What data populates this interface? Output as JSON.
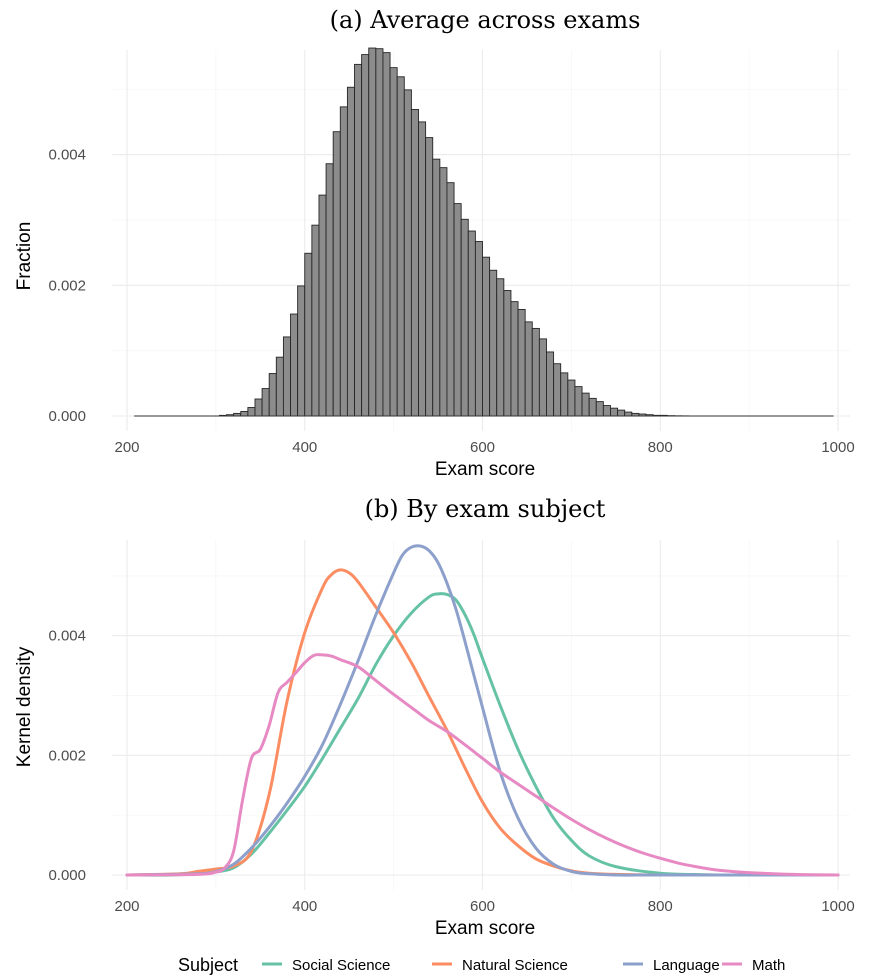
{
  "chart_data": [
    {
      "type": "bar",
      "title": "(a) Average across exams",
      "xlabel": "Exam score",
      "ylabel": "Fraction",
      "xlim": [
        200,
        1000
      ],
      "ylim": [
        0,
        0.0056
      ],
      "x_ticks": [
        "200",
        "400",
        "600",
        "800",
        "1000"
      ],
      "y_ticks": [
        "0.000",
        "0.002",
        "0.004"
      ],
      "grid": true,
      "bin_width": 8,
      "bars": {
        "bin_start": [
          304,
          312,
          320,
          328,
          336,
          344,
          352,
          360,
          368,
          376,
          384,
          392,
          400,
          408,
          416,
          424,
          432,
          440,
          448,
          456,
          464,
          472,
          480,
          488,
          496,
          504,
          512,
          520,
          528,
          536,
          544,
          552,
          560,
          568,
          576,
          584,
          592,
          600,
          608,
          616,
          624,
          632,
          640,
          648,
          656,
          664,
          672,
          680,
          688,
          696,
          704,
          712,
          720,
          728,
          736,
          744,
          752,
          760,
          768,
          776,
          784,
          792,
          800,
          808,
          816,
          824
        ],
        "values": [
          1e-05,
          2e-05,
          4e-05,
          7e-05,
          0.00013,
          0.00026,
          0.00042,
          0.00065,
          0.0009,
          0.00121,
          0.00156,
          0.00199,
          0.00249,
          0.00292,
          0.00338,
          0.00386,
          0.00435,
          0.00473,
          0.00503,
          0.00538,
          0.00553,
          0.00563,
          0.00562,
          0.00556,
          0.00533,
          0.00519,
          0.00499,
          0.00469,
          0.0045,
          0.00426,
          0.00393,
          0.0038,
          0.00357,
          0.00325,
          0.00301,
          0.00283,
          0.00267,
          0.00243,
          0.00223,
          0.0021,
          0.00192,
          0.00175,
          0.00163,
          0.00144,
          0.00134,
          0.00118,
          0.00098,
          0.0008,
          0.00066,
          0.00055,
          0.00045,
          0.00035,
          0.00027,
          0.00022,
          0.00016,
          0.00012,
          9e-05,
          6e-05,
          4e-05,
          3e-05,
          2e-05,
          1e-05,
          1e-05,
          5e-06,
          3e-06,
          2e-06
        ]
      }
    },
    {
      "type": "line",
      "title": "(b) By exam subject",
      "xlabel": "Exam score",
      "ylabel": "Kernel density",
      "xlim": [
        200,
        1000
      ],
      "ylim": [
        0,
        0.0056
      ],
      "x_ticks": [
        "200",
        "400",
        "600",
        "800",
        "1000"
      ],
      "y_ticks": [
        "0.000",
        "0.002",
        "0.004"
      ],
      "grid": true,
      "legend": {
        "title": "Subject",
        "position": "bottom"
      },
      "series": [
        {
          "name": "Social Science",
          "color": "#66c2a5",
          "x": [
            200,
            250,
            280,
            300,
            320,
            340,
            360,
            380,
            400,
            420,
            440,
            460,
            480,
            500,
            520,
            540,
            550,
            560,
            570,
            580,
            590,
            600,
            620,
            640,
            660,
            680,
            700,
            720,
            750,
            800,
            850,
            900,
            1000
          ],
          "y": [
            0,
            0,
            2e-05,
            5e-05,
            0.00012,
            0.00035,
            0.0007,
            0.00108,
            0.00148,
            0.00195,
            0.00245,
            0.00295,
            0.00352,
            0.004,
            0.00438,
            0.00465,
            0.0047,
            0.00469,
            0.0046,
            0.00436,
            0.00403,
            0.00362,
            0.00283,
            0.0021,
            0.00148,
            0.00095,
            0.00058,
            0.00032,
            0.00014,
            3e-05,
            5e-06,
            0,
            0
          ]
        },
        {
          "name": "Natural Science",
          "color": "#fc8d62",
          "x": [
            200,
            260,
            280,
            300,
            320,
            340,
            360,
            380,
            400,
            420,
            430,
            440,
            450,
            460,
            480,
            500,
            520,
            540,
            560,
            580,
            600,
            620,
            640,
            660,
            680,
            700,
            720,
            750,
            800,
            850,
            1000
          ],
          "y": [
            0,
            2e-05,
            6e-05,
            0.0001,
            0.00015,
            0.0004,
            0.00135,
            0.0029,
            0.00405,
            0.0048,
            0.00502,
            0.0051,
            0.00505,
            0.0049,
            0.00448,
            0.00405,
            0.00355,
            0.00298,
            0.00242,
            0.0018,
            0.00122,
            0.00078,
            0.00049,
            0.00027,
            0.00015,
            7e-05,
            3e-05,
            1e-05,
            0,
            0,
            0
          ]
        },
        {
          "name": "Language",
          "color": "#8da0cb",
          "x": [
            200,
            280,
            300,
            320,
            340,
            360,
            380,
            400,
            420,
            440,
            460,
            480,
            500,
            510,
            520,
            530,
            540,
            550,
            560,
            570,
            580,
            600,
            620,
            640,
            660,
            680,
            700,
            720,
            750,
            800,
            1000
          ],
          "y": [
            0,
            2e-05,
            6e-05,
            0.00018,
            0.00045,
            0.0008,
            0.0012,
            0.00165,
            0.00218,
            0.00285,
            0.00358,
            0.00435,
            0.00505,
            0.00535,
            0.00548,
            0.0055,
            0.00542,
            0.00522,
            0.00488,
            0.00445,
            0.00392,
            0.0028,
            0.00172,
            0.00095,
            0.00045,
            0.00018,
            6e-05,
            2e-05,
            0,
            0,
            0
          ]
        },
        {
          "name": "Math",
          "color": "#e78ac3",
          "x": [
            200,
            280,
            300,
            310,
            320,
            330,
            340,
            350,
            360,
            370,
            380,
            390,
            400,
            410,
            420,
            430,
            440,
            460,
            480,
            500,
            520,
            540,
            560,
            580,
            600,
            620,
            640,
            660,
            680,
            700,
            720,
            740,
            760,
            780,
            800,
            820,
            840,
            860,
            880,
            900,
            950,
            1000
          ],
          "y": [
            0,
            1e-05,
            5e-05,
            0.00012,
            0.0004,
            0.00125,
            0.00195,
            0.0021,
            0.0025,
            0.00305,
            0.00322,
            0.00338,
            0.00355,
            0.00367,
            0.00368,
            0.00366,
            0.0036,
            0.00348,
            0.00325,
            0.00302,
            0.0028,
            0.00258,
            0.0024,
            0.00218,
            0.00195,
            0.00172,
            0.00152,
            0.00132,
            0.00112,
            0.00093,
            0.00076,
            0.00061,
            0.00048,
            0.00037,
            0.00028,
            0.0002,
            0.00014,
            9e-05,
            6e-05,
            4e-05,
            1e-05,
            0
          ]
        }
      ]
    }
  ]
}
